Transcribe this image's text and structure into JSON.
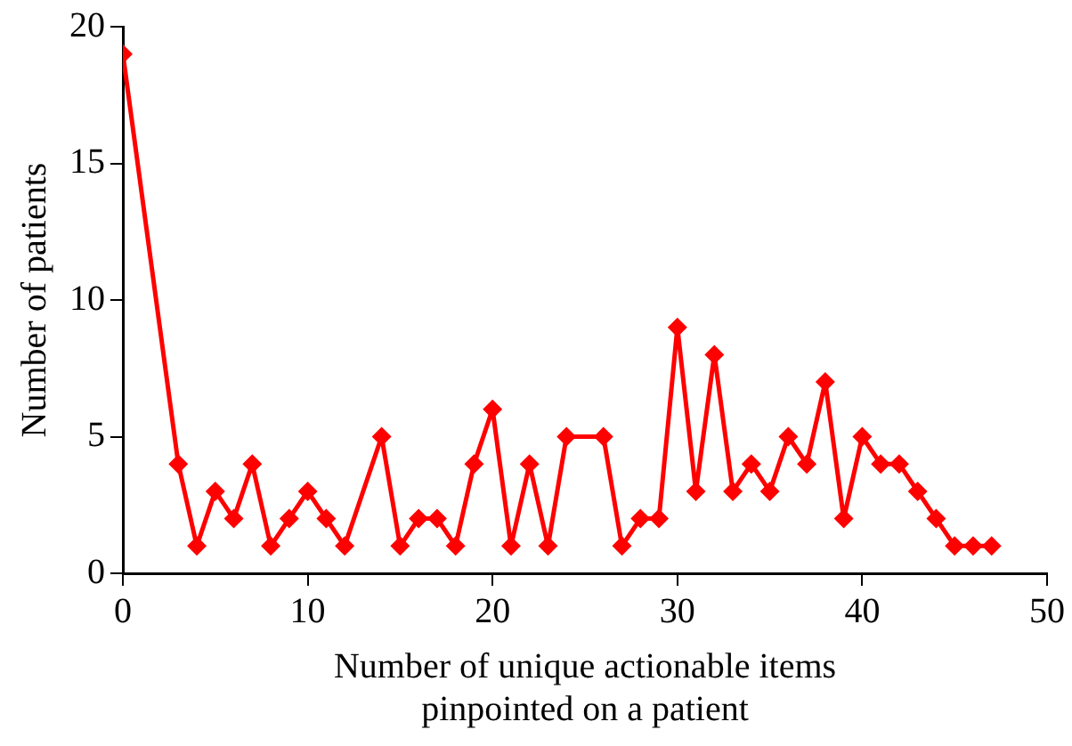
{
  "chart_data": {
    "type": "line",
    "xlabel": "Number of unique actionable items\npinpointed on a patient",
    "ylabel": "Number of patients",
    "x": [
      0,
      3,
      4,
      5,
      6,
      7,
      8,
      9,
      10,
      11,
      12,
      14,
      15,
      16,
      17,
      18,
      19,
      20,
      21,
      22,
      23,
      24,
      26,
      27,
      28,
      29,
      30,
      31,
      32,
      33,
      34,
      35,
      36,
      37,
      38,
      39,
      40,
      41,
      42,
      43,
      44,
      45,
      46,
      47
    ],
    "series": [
      {
        "color": "#ff0000",
        "values": [
          19,
          4,
          1,
          3,
          2,
          4,
          1,
          2,
          3,
          2,
          1,
          5,
          1,
          2,
          2,
          1,
          4,
          6,
          1,
          4,
          1,
          5,
          5,
          1,
          2,
          2,
          9,
          3,
          8,
          3,
          4,
          3,
          5,
          4,
          7,
          2,
          5,
          4,
          4,
          3,
          2,
          1,
          1,
          1
        ]
      }
    ],
    "xlim": [
      0,
      50
    ],
    "xticks": [
      0,
      10,
      20,
      30,
      40,
      50
    ],
    "ylim": [
      0,
      20
    ],
    "yticks": [
      0,
      5,
      10,
      15,
      20
    ],
    "grid": false,
    "legend": false,
    "marker": "diamond",
    "line_style": "solid"
  }
}
